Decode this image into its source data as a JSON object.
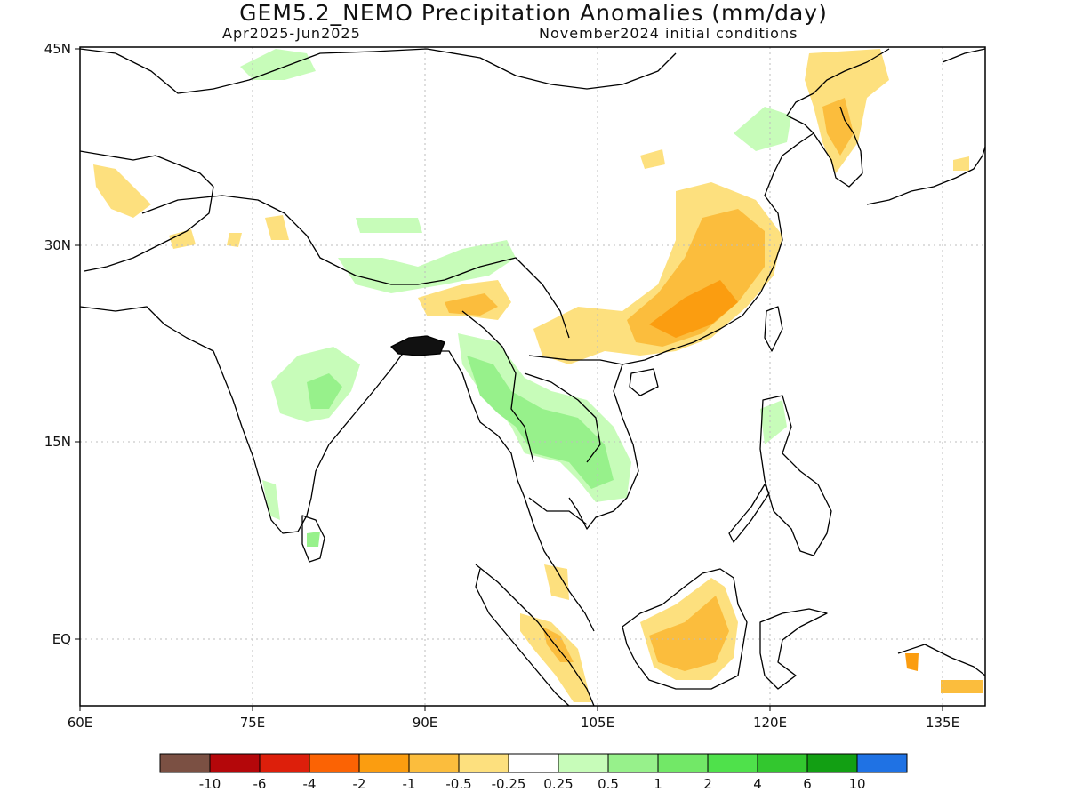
{
  "title": "GEM5.2_NEMO Precipitation Anomalies (mm/day)",
  "subtitle_left": "Apr2025-Jun2025",
  "subtitle_right": "November2024 initial conditions",
  "lat_labels": [
    "45N",
    "30N",
    "15N",
    "EQ"
  ],
  "lon_labels": [
    "60E",
    "75E",
    "90E",
    "105E",
    "120E",
    "135E"
  ],
  "colorbar": {
    "colors": [
      "#7b5043",
      "#b4070a",
      "#dd1f0b",
      "#fb6304",
      "#fb9d10",
      "#fbbd3d",
      "#fde07e",
      "#ffffff",
      "#c7fcb9",
      "#97f18b",
      "#72e867",
      "#4fe14b",
      "#33c72f",
      "#129f13",
      "#1f72e4"
    ],
    "tick_labels": [
      "-10",
      "-6",
      "-4",
      "-2",
      "-1",
      "-0.5",
      "-0.25",
      "0.25",
      "0.5",
      "1",
      "2",
      "4",
      "6",
      "10"
    ]
  }
}
